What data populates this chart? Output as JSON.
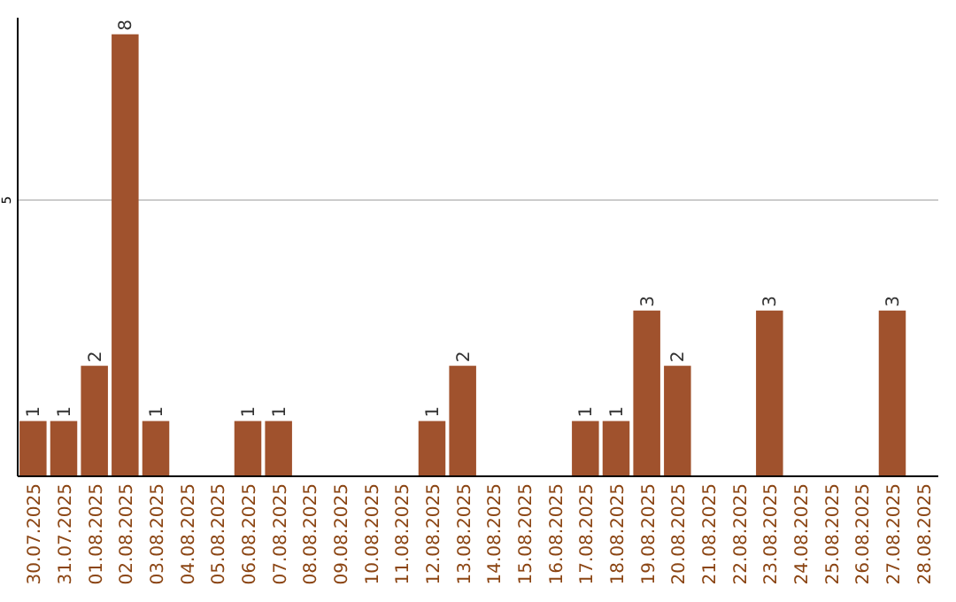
{
  "chart_data": {
    "type": "bar",
    "categories": [
      "30.07.2025",
      "31.07.2025",
      "01.08.2025",
      "02.08.2025",
      "03.08.2025",
      "04.08.2025",
      "05.08.2025",
      "06.08.2025",
      "07.08.2025",
      "08.08.2025",
      "09.08.2025",
      "10.08.2025",
      "11.08.2025",
      "12.08.2025",
      "13.08.2025",
      "14.08.2025",
      "15.08.2025",
      "16.08.2025",
      "17.08.2025",
      "18.08.2025",
      "19.08.2025",
      "20.08.2025",
      "21.08.2025",
      "22.08.2025",
      "23.08.2025",
      "24.08.2025",
      "25.08.2025",
      "26.08.2025",
      "27.08.2025",
      "28.08.2025"
    ],
    "values": [
      1,
      1,
      2,
      8,
      1,
      0,
      0,
      1,
      1,
      0,
      0,
      0,
      0,
      1,
      2,
      0,
      0,
      0,
      1,
      1,
      3,
      2,
      0,
      0,
      3,
      0,
      0,
      0,
      3,
      0
    ],
    "value_labels": [
      "1",
      "1",
      "2",
      "8",
      "1",
      null,
      null,
      "1",
      "1",
      null,
      null,
      null,
      null,
      "1",
      "2",
      null,
      null,
      null,
      "1",
      "1",
      "3",
      "2",
      null,
      null,
      "3",
      null,
      null,
      null,
      "3",
      null
    ],
    "color": "#a0522d",
    "ylim": [
      0,
      8.3
    ],
    "yticks": [
      5
    ],
    "grid": "y"
  }
}
